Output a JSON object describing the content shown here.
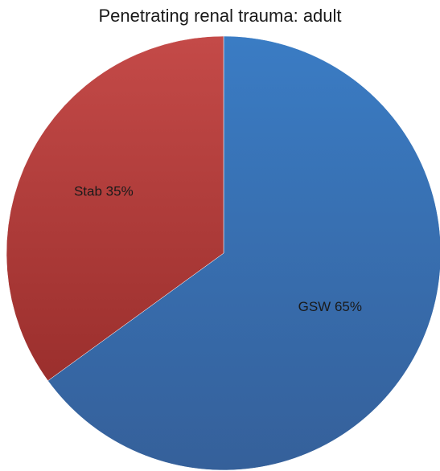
{
  "chart_data": {
    "type": "pie",
    "title": "Penetrating renal trauma: adult",
    "slices": [
      {
        "label": "GSW 65%",
        "category": "GSW",
        "value": 65,
        "color": "#3d6eae"
      },
      {
        "label": "Stab 35%",
        "category": "Stab",
        "value": 35,
        "color": "#b23a38"
      }
    ],
    "start_angle_deg": 0,
    "direction": "clockwise",
    "legend": "none"
  }
}
